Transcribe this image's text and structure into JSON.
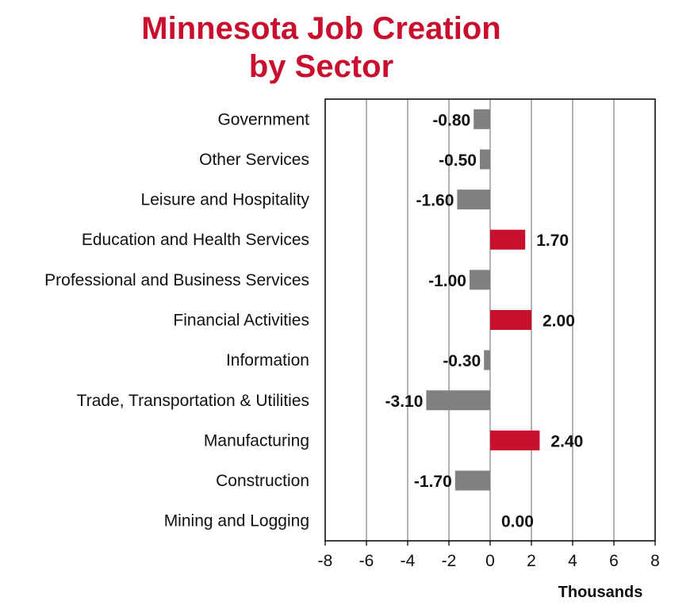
{
  "chart_data": {
    "type": "bar",
    "orientation": "horizontal",
    "title_line1": "Minnesota Job Creation",
    "title_line2": "by Sector",
    "xlabel": "Thousands",
    "ylabel": "",
    "xlim": [
      -8,
      8
    ],
    "xticks": [
      "-8",
      "-6",
      "-4",
      "-2",
      "0",
      "2",
      "4",
      "6",
      "8"
    ],
    "grid": "vertical",
    "legend": "none",
    "categories": [
      "Government",
      "Other Services",
      "Leisure and Hospitality",
      "Education and Health Services",
      "Professional and Business Services",
      "Financial Activities",
      "Information",
      "Trade, Transportation & Utilities",
      "Manufacturing",
      "Construction",
      "Mining and Logging"
    ],
    "values": [
      -0.8,
      -0.5,
      -1.6,
      1.7,
      -1.0,
      2.0,
      -0.3,
      -3.1,
      2.4,
      -1.7,
      0.0
    ],
    "value_labels": [
      "-0.80",
      "-0.50",
      "-1.60",
      "1.70",
      "-1.00",
      "2.00",
      "-0.30",
      "-3.10",
      "2.40",
      "-1.70",
      "0.00"
    ],
    "colors": {
      "title": "#c8102e",
      "positive": "#c8102e",
      "negative": "#808080",
      "grid": "#8c8c8c",
      "frame": "#000000"
    }
  }
}
